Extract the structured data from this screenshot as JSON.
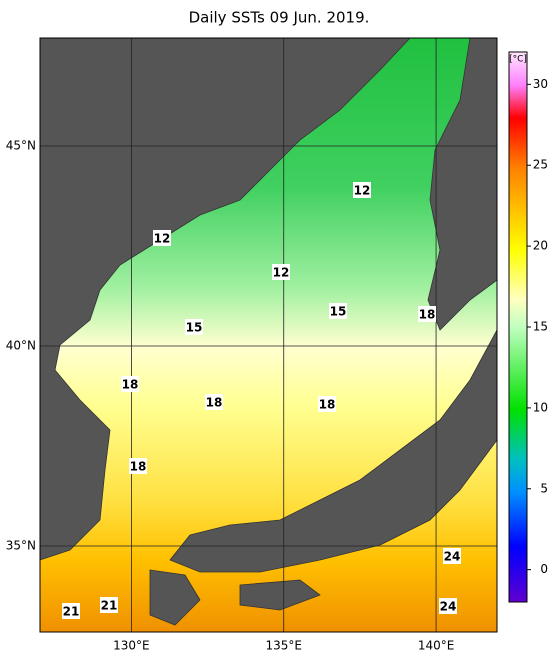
{
  "title": "Daily SSTs 09 Jun. 2019.",
  "colorbar": {
    "label": "[°C]",
    "range": [
      -2,
      32
    ],
    "ticks": [
      0,
      5,
      10,
      15,
      20,
      25,
      30
    ]
  },
  "lon": {
    "range": [
      127,
      142
    ],
    "ticks": [
      {
        "value": 130,
        "label": "130°E"
      },
      {
        "value": 135,
        "label": "135°E"
      },
      {
        "value": 140,
        "label": "140°E"
      }
    ]
  },
  "lat": {
    "range": [
      32.85,
      47.7
    ],
    "ticks": [
      {
        "value": 35,
        "label": "35°N"
      },
      {
        "value": 40,
        "label": "40°N"
      },
      {
        "value": 45,
        "label": "45°N"
      }
    ]
  },
  "contour_labels": [
    12,
    12,
    12,
    15,
    15,
    18,
    18,
    18,
    18,
    18,
    24,
    24,
    21,
    21
  ]
}
